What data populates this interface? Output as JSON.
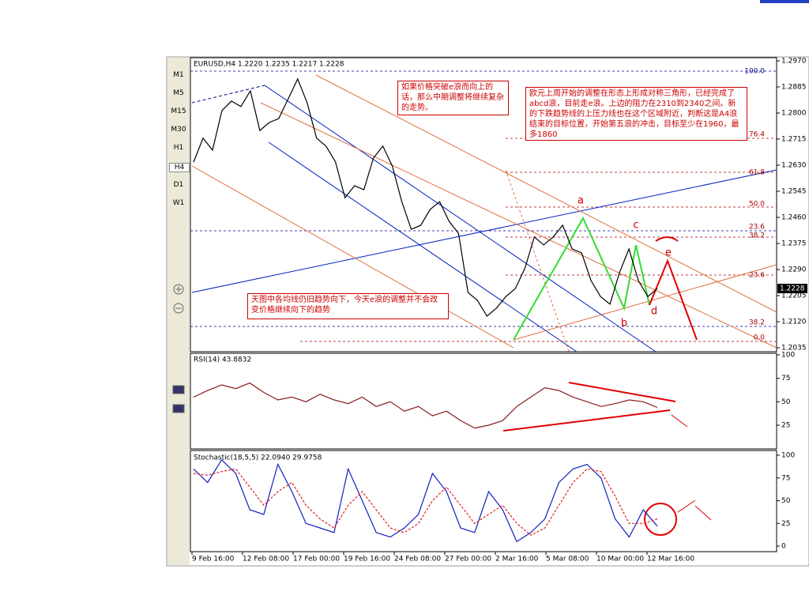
{
  "toolbar": {
    "timeframes": [
      "M1",
      "M5",
      "M15",
      "M30",
      "H1",
      "H4",
      "D1",
      "W1"
    ]
  },
  "main": {
    "header": "EURUSD,H4 1.2220 1.2235 1.2217 1.2228",
    "price_ticks": [
      {
        "value": 1.297,
        "label": "1.2970"
      },
      {
        "value": 1.2885,
        "label": "1.2885"
      },
      {
        "value": 1.28,
        "label": "1.2800"
      },
      {
        "value": 1.2715,
        "label": "1.2715"
      },
      {
        "value": 1.263,
        "label": "1.2630"
      },
      {
        "value": 1.2545,
        "label": "1.2545"
      },
      {
        "value": 1.246,
        "label": "1.2460"
      },
      {
        "value": 1.2375,
        "label": "1.2375"
      },
      {
        "value": 1.229,
        "label": "1.2290"
      },
      {
        "value": 1.2205,
        "label": "1.2205"
      },
      {
        "value": 1.212,
        "label": "1.2120"
      },
      {
        "value": 1.2035,
        "label": "1.2035"
      }
    ],
    "current_price": {
      "value": 1.2228,
      "label": "1.2228"
    },
    "close": [
      1.264,
      1.2718,
      1.2679,
      1.2808,
      1.2839,
      1.2821,
      1.2872,
      1.2743,
      1.2769,
      1.2782,
      1.2846,
      1.2911,
      1.2833,
      1.2718,
      1.2692,
      1.264,
      1.2524,
      1.2563,
      1.255,
      1.2653,
      1.2692,
      1.2627,
      1.2511,
      1.2421,
      1.2434,
      1.2486,
      1.2511,
      1.2447,
      1.2408,
      1.2215,
      1.2189,
      1.2138,
      1.2164,
      1.2202,
      1.2228,
      1.2293,
      1.2396,
      1.237,
      1.2396,
      1.2434,
      1.2357,
      1.2344,
      1.2254,
      1.2202,
      1.2177,
      1.228,
      1.2357,
      1.2254,
      1.2202,
      1.2228
    ],
    "fib_labels": [
      "100.0",
      "76.4",
      "61.8",
      "50.0",
      "23.6",
      "38.2",
      "23.6",
      "38.2",
      "0.0"
    ],
    "wave_labels": [
      "a",
      "b",
      "c",
      "d",
      "e"
    ],
    "notes": [
      "如果价格突破e浪而向上的话，那么中期调整将继续复杂的走势。",
      "欧元上周开始的调整在形态上形成对称三角形，已经完成了abcd浪，目前走e浪。上边的阻力在2310到2340之间。新的下跌趋势线的上压力线也在这个区域附近，判断这是A4浪结束的目标位置，开始第五浪的冲击，目标至少在1960，最多1860",
      "天图中各均线仍旧趋势向下，今天e浪的调整并不会改变价格继续向下的趋势"
    ]
  },
  "rsi": {
    "header": "RSI(14) 43.8832",
    "ticks": [
      100,
      75,
      50,
      25
    ],
    "values": [
      55,
      62,
      68,
      64,
      70,
      60,
      52,
      55,
      50,
      58,
      52,
      48,
      55,
      45,
      50,
      40,
      45,
      35,
      40,
      30,
      22,
      25,
      30,
      45,
      55,
      65,
      62,
      55,
      50,
      45,
      48,
      52,
      50,
      44
    ]
  },
  "stochastic": {
    "header": "Stochastic(18,5,5) 22.0940 29.9758",
    "ticks": [
      100,
      75,
      50,
      25,
      0
    ],
    "k": [
      85,
      70,
      95,
      80,
      40,
      35,
      90,
      60,
      25,
      20,
      15,
      85,
      50,
      15,
      10,
      20,
      35,
      80,
      60,
      20,
      15,
      60,
      40,
      5,
      15,
      30,
      70,
      85,
      90,
      75,
      30,
      10,
      40,
      22
    ],
    "d": [
      80,
      78,
      82,
      85,
      65,
      45,
      60,
      70,
      45,
      30,
      20,
      45,
      60,
      40,
      20,
      15,
      25,
      50,
      65,
      45,
      25,
      35,
      45,
      25,
      12,
      20,
      45,
      70,
      85,
      82,
      55,
      25,
      25,
      30
    ]
  },
  "time_labels": [
    "9 Feb 16:00",
    "12 Feb 08:00",
    "17 Feb 00:00",
    "19 Feb 16:00",
    "24 Feb 08:00",
    "27 Feb 00:00",
    "2 Mar 16:00",
    "5 Mar 08:00",
    "10 Mar 00:00",
    "12 Mar 16:00"
  ]
}
